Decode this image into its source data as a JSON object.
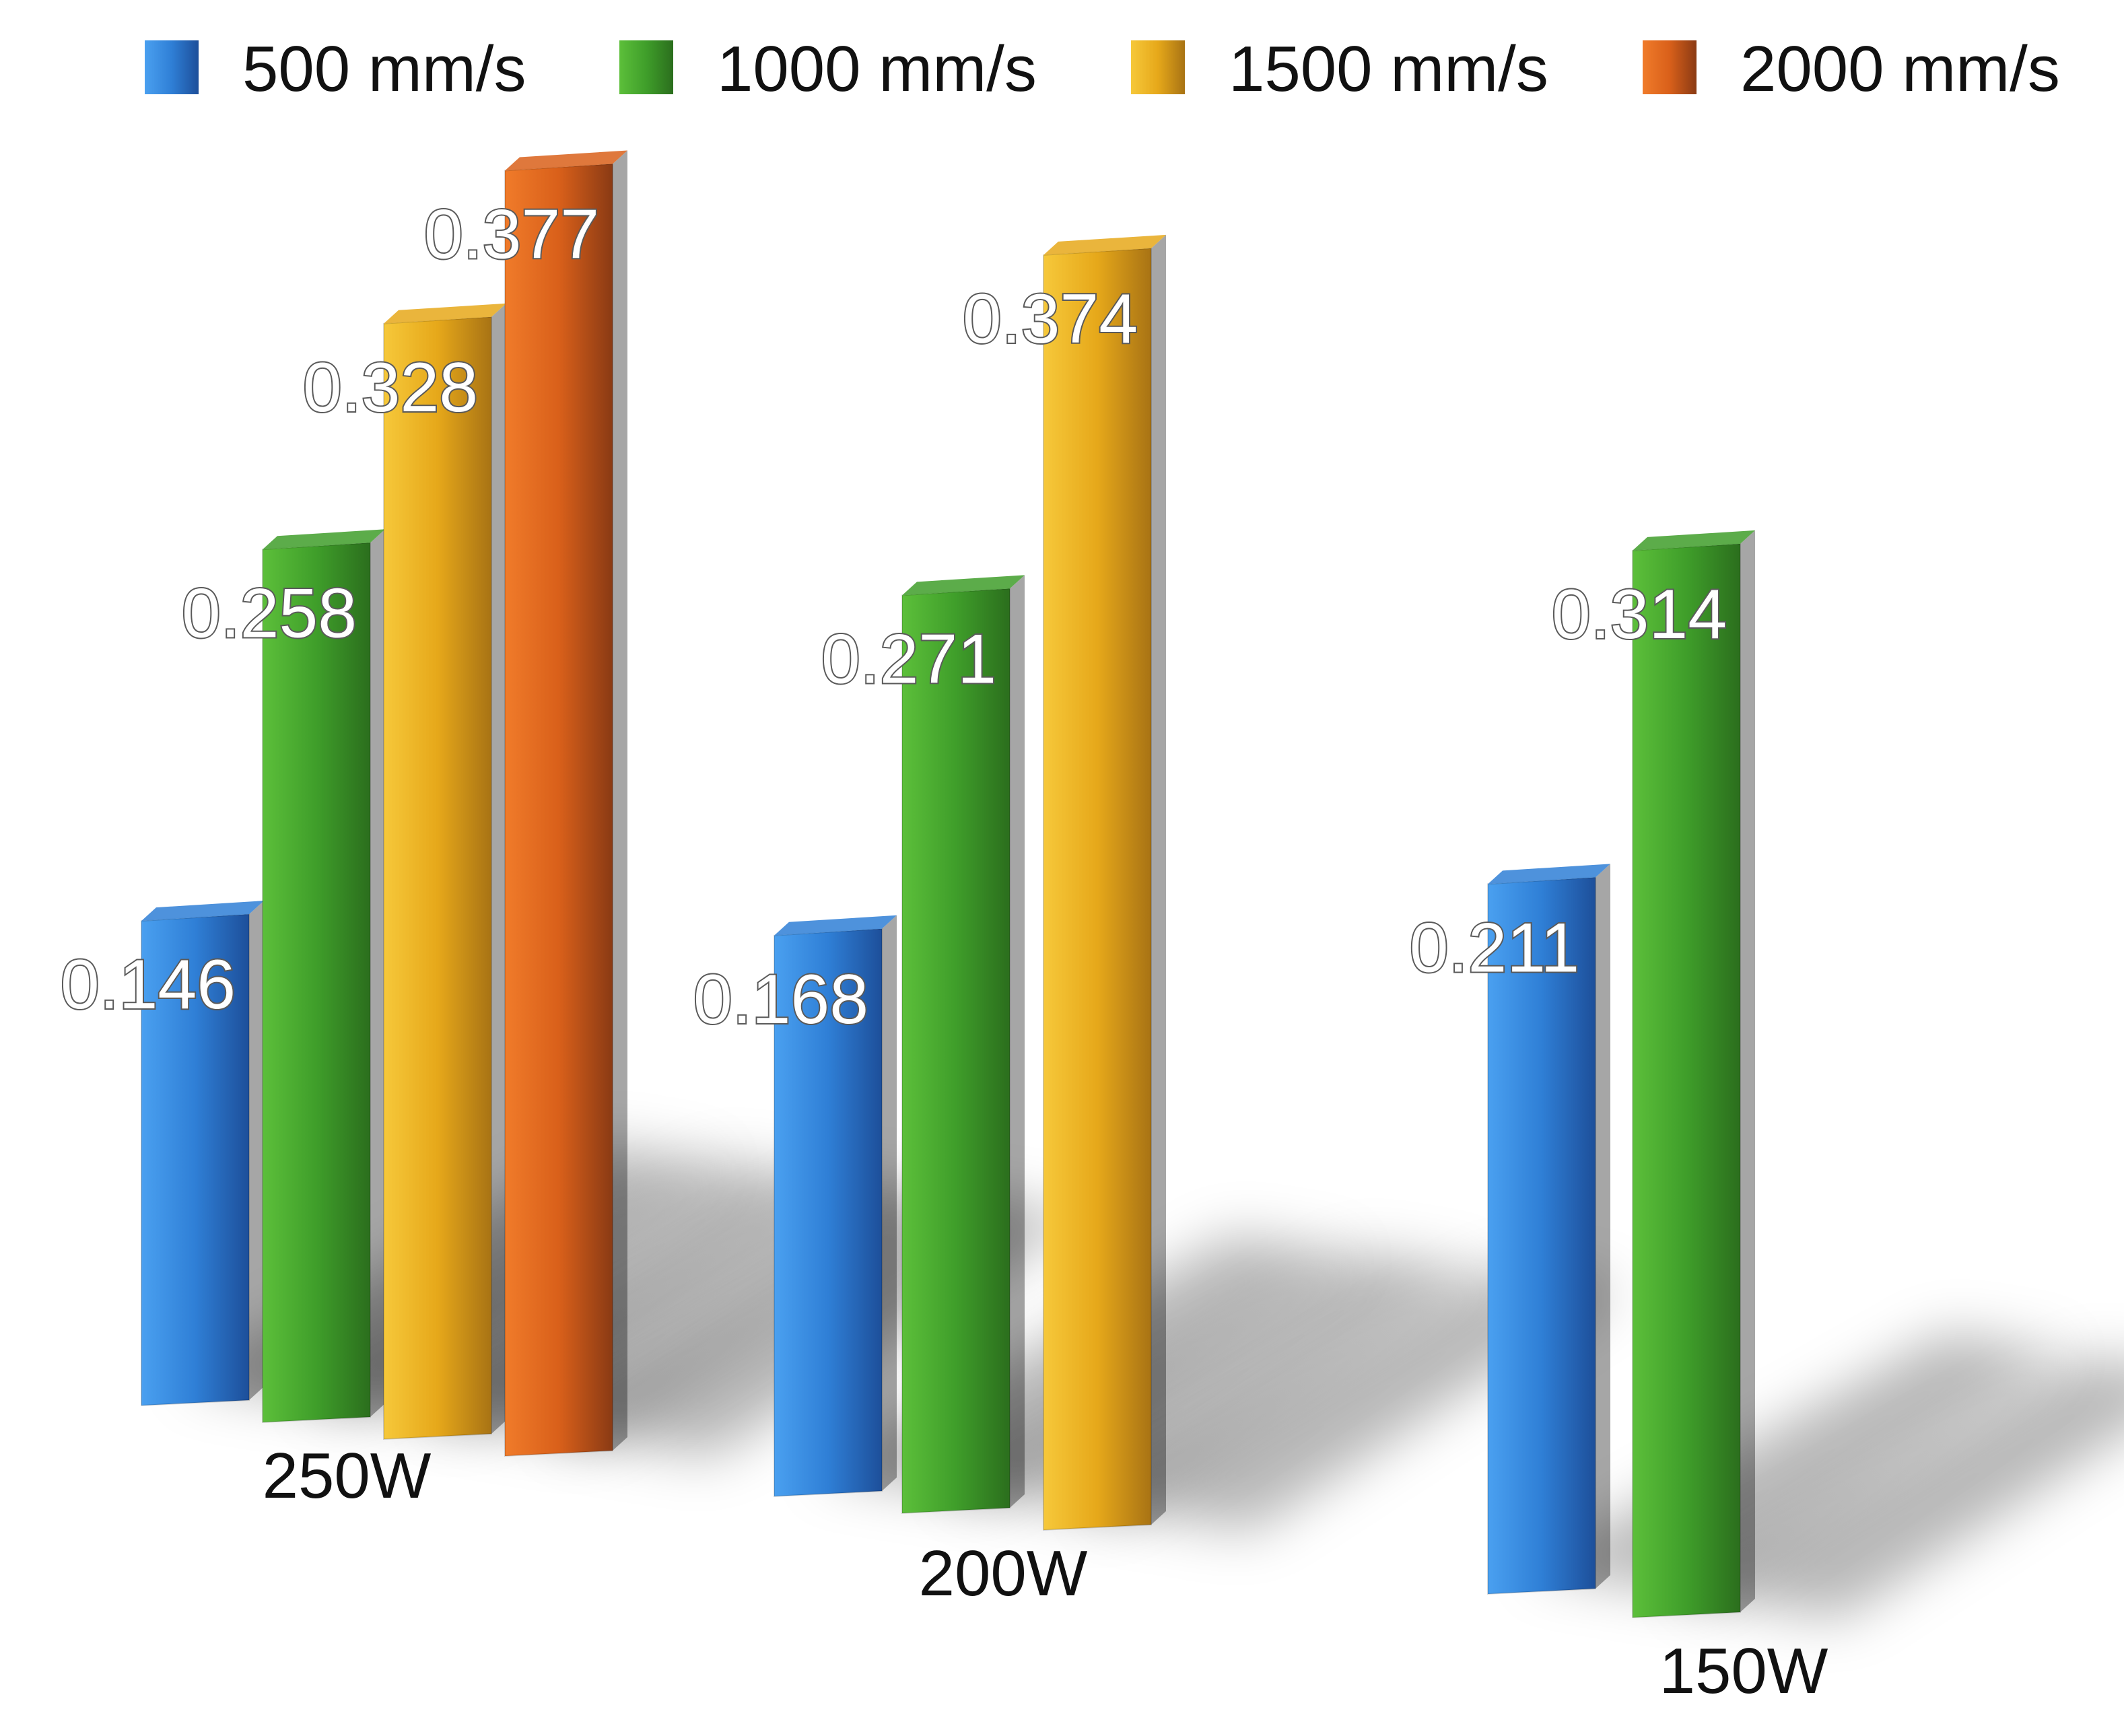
{
  "chart_data": {
    "type": "bar",
    "categories": [
      "250W",
      "200W",
      "150W"
    ],
    "series": [
      {
        "name": "500 mm/s",
        "color": "#2f7fd6",
        "values": [
          0.146,
          0.168,
          0.211
        ]
      },
      {
        "name": "1000 mm/s",
        "color": "#3f9e2a",
        "values": [
          0.258,
          0.271,
          0.314
        ]
      },
      {
        "name": "1500 mm/s",
        "color": "#e6a81a",
        "values": [
          0.328,
          0.374,
          null
        ]
      },
      {
        "name": "2000 mm/s",
        "color": "#d9601a",
        "values": [
          0.377,
          null,
          null
        ]
      }
    ],
    "legend_position": "top",
    "grid": false,
    "style": "3d-perspective"
  }
}
